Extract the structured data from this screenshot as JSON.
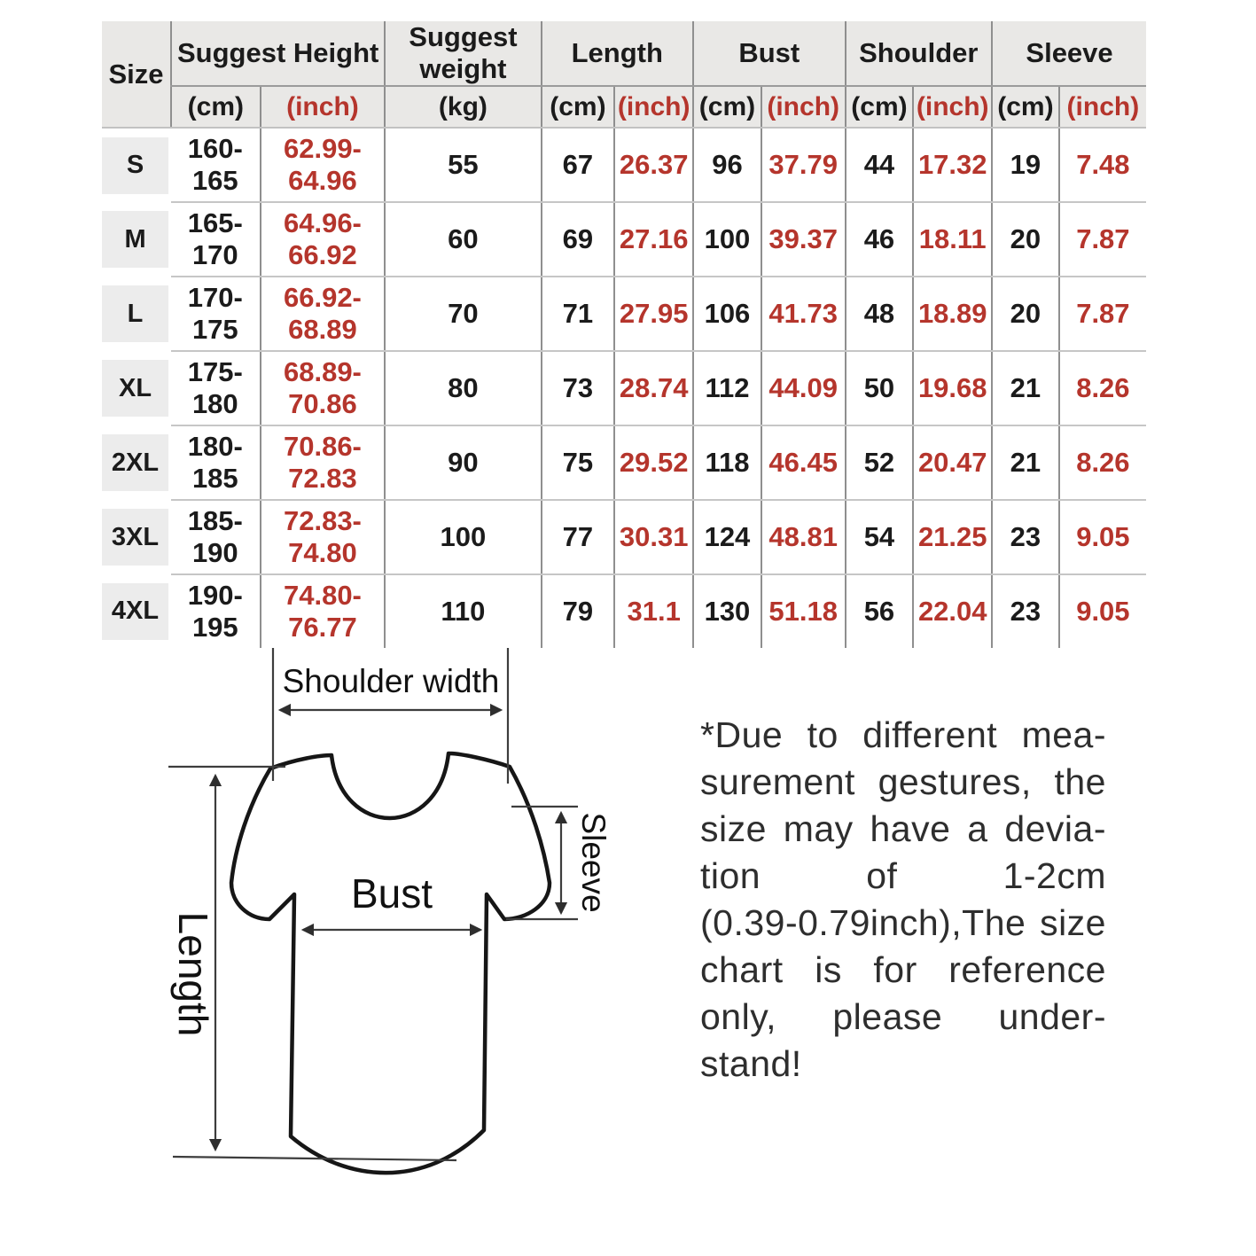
{
  "table": {
    "header": {
      "size": "Size",
      "suggest_height": "Suggest Height",
      "suggest_weight": "Suggest weight",
      "length": "Length",
      "bust": "Bust",
      "shoulder": "Shoulder",
      "sleeve": "Sleeve",
      "unit_cm": "(cm)",
      "unit_inch": "(inch)",
      "unit_kg": "(kg)"
    },
    "rows": [
      {
        "size": "S",
        "height_cm": "160-165",
        "height_inch": "62.99-64.96",
        "weight_kg": "55",
        "length_cm": "67",
        "length_inch": "26.37",
        "bust_cm": "96",
        "bust_inch": "37.79",
        "shoulder_cm": "44",
        "shoulder_inch": "17.32",
        "sleeve_cm": "19",
        "sleeve_inch": "7.48"
      },
      {
        "size": "M",
        "height_cm": "165-170",
        "height_inch": "64.96-66.92",
        "weight_kg": "60",
        "length_cm": "69",
        "length_inch": "27.16",
        "bust_cm": "100",
        "bust_inch": "39.37",
        "shoulder_cm": "46",
        "shoulder_inch": "18.11",
        "sleeve_cm": "20",
        "sleeve_inch": "7.87"
      },
      {
        "size": "L",
        "height_cm": "170-175",
        "height_inch": "66.92-68.89",
        "weight_kg": "70",
        "length_cm": "71",
        "length_inch": "27.95",
        "bust_cm": "106",
        "bust_inch": "41.73",
        "shoulder_cm": "48",
        "shoulder_inch": "18.89",
        "sleeve_cm": "20",
        "sleeve_inch": "7.87"
      },
      {
        "size": "XL",
        "height_cm": "175-180",
        "height_inch": "68.89-70.86",
        "weight_kg": "80",
        "length_cm": "73",
        "length_inch": "28.74",
        "bust_cm": "112",
        "bust_inch": "44.09",
        "shoulder_cm": "50",
        "shoulder_inch": "19.68",
        "sleeve_cm": "21",
        "sleeve_inch": "8.26"
      },
      {
        "size": "2XL",
        "height_cm": "180-185",
        "height_inch": "70.86-72.83",
        "weight_kg": "90",
        "length_cm": "75",
        "length_inch": "29.52",
        "bust_cm": "118",
        "bust_inch": "46.45",
        "shoulder_cm": "52",
        "shoulder_inch": "20.47",
        "sleeve_cm": "21",
        "sleeve_inch": "8.26"
      },
      {
        "size": "3XL",
        "height_cm": "185-190",
        "height_inch": "72.83-74.80",
        "weight_kg": "100",
        "length_cm": "77",
        "length_inch": "30.31",
        "bust_cm": "124",
        "bust_inch": "48.81",
        "shoulder_cm": "54",
        "shoulder_inch": "21.25",
        "sleeve_cm": "23",
        "sleeve_inch": "9.05"
      },
      {
        "size": "4XL",
        "height_cm": "190-195",
        "height_inch": "74.80-76.77",
        "weight_kg": "110",
        "length_cm": "79",
        "length_inch": "31.1",
        "bust_cm": "130",
        "bust_inch": "51.18",
        "shoulder_cm": "56",
        "shoulder_inch": "22.04",
        "sleeve_cm": "23",
        "sleeve_inch": "9.05"
      }
    ]
  },
  "diagram": {
    "shoulder_width_label": "Shoulder width",
    "length_label": "Length",
    "bust_label": "Bust",
    "sleeve_label": "Sleeve"
  },
  "note": {
    "lines": [
      "*Due to different mea-",
      "surement gestures, the",
      "size may have a devia-",
      "tion of 1-2cm",
      "(0.39-0.79inch),The size",
      "chart is for reference",
      "only, please under-",
      "stand!"
    ]
  },
  "colors": {
    "accent_red": "#b5352c",
    "header_bg": "#e9e8e6",
    "grid_dark": "#8f8f8f",
    "grid_light": "#c6c6c6",
    "size_cell_bg": "#ececec"
  }
}
